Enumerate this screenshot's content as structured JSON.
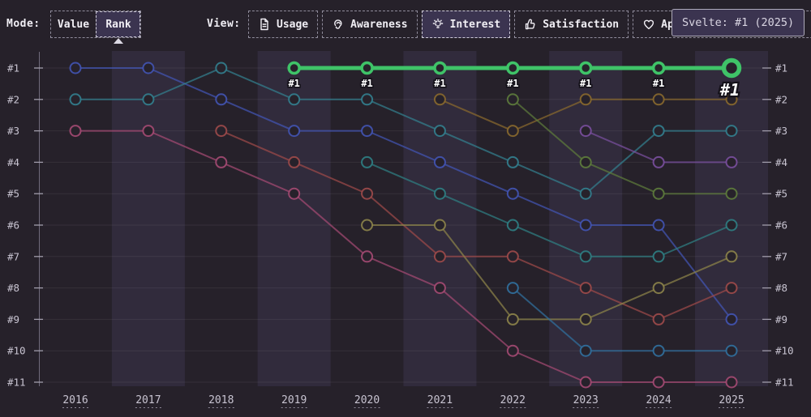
{
  "toolbar": {
    "mode_label": "Mode:",
    "mode_options": [
      {
        "label": "Value",
        "selected": false
      },
      {
        "label": "Rank",
        "selected": true
      }
    ],
    "view_label": "View:",
    "view_options": [
      {
        "label": "Usage",
        "icon": "document-icon",
        "selected": false
      },
      {
        "label": "Awareness",
        "icon": "ear-icon",
        "selected": false
      },
      {
        "label": "Interest",
        "icon": "lightbulb-icon",
        "selected": true
      },
      {
        "label": "Satisfaction",
        "icon": "thumbs-up-icon",
        "selected": false
      },
      {
        "label": "Appreciation",
        "icon": "heart-icon",
        "selected": false
      }
    ]
  },
  "tooltip": {
    "text": "Svelte: #1 (2025)"
  },
  "colors": {
    "background": "#26212a",
    "band": "#312b3c",
    "selected_bg": "#3b3450",
    "tooltip_bg": "#3b3450",
    "axis_line": "#6f6a7b",
    "tick": "#a19dab",
    "axis_text": "#c8c4d1",
    "grid": "#ffffff",
    "annotation_text": "#ffffff",
    "annotation_outline": "#15121a",
    "highlight_green": "#3fc368"
  },
  "chart_data": {
    "type": "line",
    "subtype": "rank-bump",
    "x": [
      "2016",
      "2017",
      "2018",
      "2019",
      "2020",
      "2021",
      "2022",
      "2023",
      "2024",
      "2025"
    ],
    "y_ticks": [
      "#1",
      "#2",
      "#3",
      "#4",
      "#5",
      "#6",
      "#7",
      "#8",
      "#9",
      "#10",
      "#11"
    ],
    "y_axis_sides": "both",
    "ylim": [
      1,
      11
    ],
    "grid": true,
    "legend": "none",
    "series": [
      {
        "name": "series-indigo",
        "color": "#4354b4",
        "ranks": [
          1,
          1,
          2,
          3,
          3,
          4,
          5,
          6,
          6,
          9
        ]
      },
      {
        "name": "series-teal",
        "color": "#33808f",
        "ranks": [
          2,
          2,
          1,
          2,
          2,
          3,
          4,
          5,
          3,
          3
        ]
      },
      {
        "name": "series-rose",
        "color": "#a54a73",
        "ranks": [
          3,
          3,
          4,
          5,
          7,
          8,
          10,
          11,
          11,
          11
        ]
      },
      {
        "name": "series-red",
        "color": "#9e4a4a",
        "ranks": [
          null,
          null,
          3,
          4,
          5,
          7,
          7,
          8,
          9,
          8
        ]
      },
      {
        "name": "series-cyan-teal",
        "color": "#2f8084",
        "ranks": [
          null,
          null,
          null,
          null,
          4,
          5,
          6,
          7,
          7,
          6
        ]
      },
      {
        "name": "series-olive",
        "color": "#8d844a",
        "ranks": [
          null,
          null,
          null,
          null,
          6,
          6,
          9,
          9,
          8,
          7
        ]
      },
      {
        "name": "series-gold",
        "color": "#8a692e",
        "ranks": [
          null,
          null,
          null,
          null,
          null,
          2,
          3,
          2,
          2,
          2
        ]
      },
      {
        "name": "series-olive-green",
        "color": "#5e7c3c",
        "ranks": [
          null,
          null,
          null,
          null,
          null,
          null,
          2,
          4,
          5,
          5
        ]
      },
      {
        "name": "series-steel-blue",
        "color": "#31709f",
        "ranks": [
          null,
          null,
          null,
          null,
          null,
          null,
          8,
          10,
          10,
          10
        ]
      },
      {
        "name": "series-purple",
        "color": "#7a4f9f",
        "ranks": [
          null,
          null,
          null,
          null,
          null,
          null,
          null,
          3,
          4,
          4
        ]
      },
      {
        "name": "Svelte",
        "color": "#3fc368",
        "highlight": true,
        "ranks": [
          null,
          null,
          null,
          1,
          1,
          1,
          1,
          1,
          1,
          1
        ],
        "point_labels": [
          "",
          "",
          "",
          "#1",
          "#1",
          "#1",
          "#1",
          "#1",
          "#1",
          "#1"
        ]
      }
    ]
  }
}
